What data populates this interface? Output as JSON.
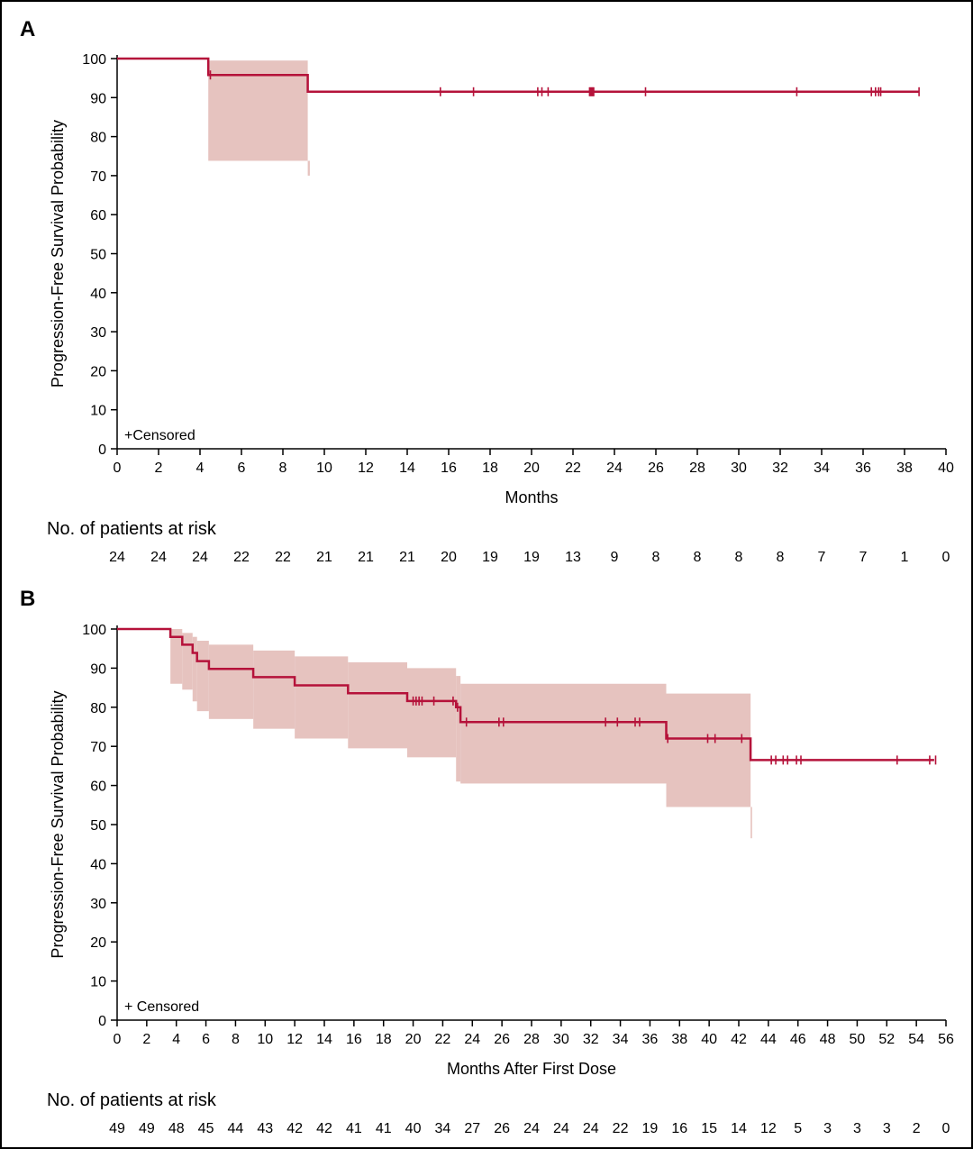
{
  "colors": {
    "curve": "#b5123a",
    "ci_band": "#e6c3bf",
    "axis": "#000000"
  },
  "chart_data": [
    {
      "panel": "A",
      "type": "line",
      "subtype": "kaplan-meier",
      "xlabel": "Months",
      "ylabel": "Progression-Free Survival Probability",
      "xlim": [
        0,
        40
      ],
      "ylim": [
        0,
        100
      ],
      "xticks": [
        0,
        2,
        4,
        6,
        8,
        10,
        12,
        14,
        16,
        18,
        20,
        22,
        24,
        26,
        28,
        30,
        32,
        34,
        36,
        38,
        40
      ],
      "yticks": [
        0,
        10,
        20,
        30,
        40,
        50,
        60,
        70,
        80,
        90,
        100
      ],
      "legend": "+Censored",
      "steps": [
        [
          0,
          100
        ],
        [
          4.4,
          100
        ],
        [
          4.4,
          95.8
        ],
        [
          9.2,
          95.8
        ],
        [
          9.2,
          91.5
        ],
        [
          38.7,
          91.5
        ]
      ],
      "ci_band": [
        {
          "x0": 4.4,
          "x1": 9.2,
          "lower": 73.8,
          "upper": 99.5
        },
        {
          "x0": 9.2,
          "x1": 9.3,
          "lower": 70,
          "upper": 73.8
        }
      ],
      "censored": [
        4.5,
        15.6,
        17.2,
        20.3,
        20.5,
        20.8,
        22.8,
        22.85,
        22.9,
        22.95,
        23.0,
        25.5,
        32.8,
        36.4,
        36.6,
        36.75,
        36.85,
        38.7
      ],
      "risk_title": "No. of patients at risk",
      "at_risk": {
        "times": [
          0,
          2,
          4,
          6,
          8,
          10,
          12,
          14,
          16,
          18,
          20,
          22,
          24,
          26,
          28,
          30,
          32,
          34,
          36,
          38,
          40
        ],
        "values": [
          "24",
          "24",
          "24",
          "22",
          "22",
          "21",
          "21",
          "21",
          "20",
          "19",
          "19",
          "13",
          "9",
          "8",
          "8",
          "8",
          "8",
          "7",
          "7",
          "1",
          "0"
        ]
      }
    },
    {
      "panel": "B",
      "type": "line",
      "subtype": "kaplan-meier",
      "xlabel": "Months After First Dose",
      "ylabel": "Progression-Free Survival Probability",
      "xlim": [
        0,
        56
      ],
      "ylim": [
        0,
        100
      ],
      "xticks": [
        0,
        2,
        4,
        6,
        8,
        10,
        12,
        14,
        16,
        18,
        20,
        22,
        24,
        26,
        28,
        30,
        32,
        34,
        36,
        38,
        40,
        42,
        44,
        46,
        48,
        50,
        52,
        54,
        56
      ],
      "yticks": [
        0,
        10,
        20,
        30,
        40,
        50,
        60,
        70,
        80,
        90,
        100
      ],
      "legend": "+ Censored",
      "steps": [
        [
          0,
          100
        ],
        [
          3.6,
          100
        ],
        [
          3.6,
          98
        ],
        [
          4.4,
          98
        ],
        [
          4.4,
          96
        ],
        [
          5.1,
          96
        ],
        [
          5.1,
          93.9
        ],
        [
          5.4,
          93.9
        ],
        [
          5.4,
          91.8
        ],
        [
          6.2,
          91.8
        ],
        [
          6.2,
          89.8
        ],
        [
          9.2,
          89.8
        ],
        [
          9.2,
          87.7
        ],
        [
          12.0,
          87.7
        ],
        [
          12.0,
          85.6
        ],
        [
          15.6,
          85.6
        ],
        [
          15.6,
          83.6
        ],
        [
          19.6,
          83.6
        ],
        [
          19.6,
          81.6
        ],
        [
          22.9,
          81.6
        ],
        [
          22.9,
          80
        ],
        [
          23.2,
          80
        ],
        [
          23.2,
          76.2
        ],
        [
          37.1,
          76.2
        ],
        [
          37.1,
          72
        ],
        [
          42.8,
          72
        ],
        [
          42.8,
          66.5
        ],
        [
          55.2,
          66.5
        ]
      ],
      "ci_band": [
        {
          "x0": 3.6,
          "x1": 4.4,
          "lower": 86,
          "upper": 100
        },
        {
          "x0": 4.4,
          "x1": 5.1,
          "lower": 84.5,
          "upper": 99
        },
        {
          "x0": 5.1,
          "x1": 5.4,
          "lower": 81.5,
          "upper": 98
        },
        {
          "x0": 5.4,
          "x1": 6.2,
          "lower": 79,
          "upper": 97
        },
        {
          "x0": 6.2,
          "x1": 9.2,
          "lower": 77,
          "upper": 96
        },
        {
          "x0": 9.2,
          "x1": 12.0,
          "lower": 74.5,
          "upper": 94.5
        },
        {
          "x0": 12.0,
          "x1": 15.6,
          "lower": 72,
          "upper": 93
        },
        {
          "x0": 15.6,
          "x1": 19.6,
          "lower": 69.5,
          "upper": 91.5
        },
        {
          "x0": 19.6,
          "x1": 22.9,
          "lower": 67.2,
          "upper": 90
        },
        {
          "x0": 22.9,
          "x1": 23.2,
          "lower": 61,
          "upper": 88
        },
        {
          "x0": 23.2,
          "x1": 37.1,
          "lower": 60.5,
          "upper": 86
        },
        {
          "x0": 37.1,
          "x1": 42.8,
          "lower": 54.5,
          "upper": 83.5
        },
        {
          "x0": 42.8,
          "x1": 42.9,
          "lower": 46.5,
          "upper": 54.5
        }
      ],
      "censored": [
        20.0,
        20.2,
        20.4,
        20.6,
        21.4,
        22.7,
        23.0,
        23.6,
        25.8,
        26.1,
        33.0,
        33.8,
        35.0,
        35.3,
        37.2,
        39.9,
        40.4,
        42.2,
        44.2,
        44.5,
        45.0,
        45.3,
        45.9,
        46.2,
        52.7,
        54.9,
        55.3
      ],
      "risk_title": "No. of patients at risk",
      "at_risk": {
        "times": [
          0,
          2,
          4,
          6,
          8,
          10,
          12,
          14,
          16,
          18,
          20,
          22,
          24,
          26,
          28,
          30,
          32,
          34,
          36,
          38,
          40,
          42,
          44,
          46,
          48,
          50,
          52,
          54,
          56
        ],
        "values": [
          "49",
          "49",
          "48",
          "45",
          "44",
          "43",
          "42",
          "42",
          "41",
          "41",
          "40",
          "34",
          "27",
          "26",
          "24",
          "24",
          "24",
          "22",
          "19",
          "16",
          "15",
          "14",
          "12",
          "5",
          "3",
          "3",
          "3",
          "2",
          "0"
        ]
      }
    }
  ]
}
